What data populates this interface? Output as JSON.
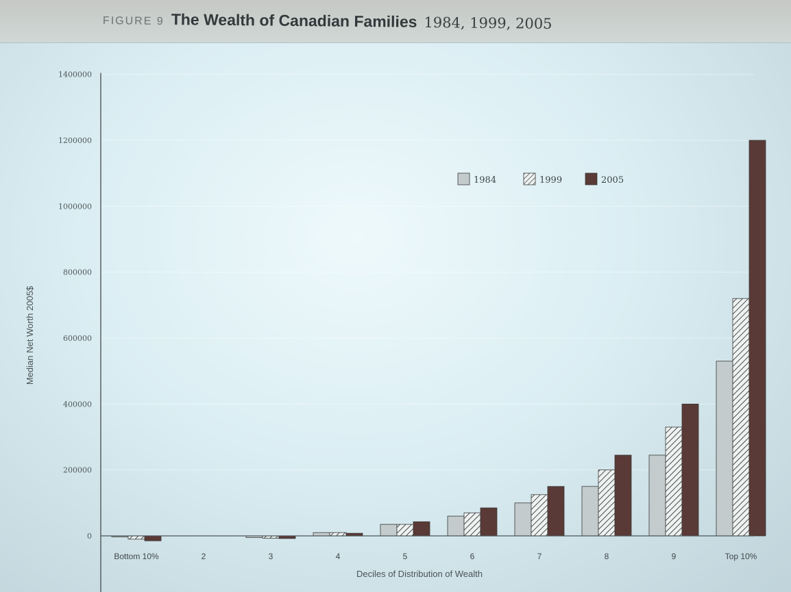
{
  "figure": {
    "label": "FIGURE 9",
    "title": "The Wealth of Canadian Families",
    "years": "1984, 1999, 2005"
  },
  "colors": {
    "background": "#dbeef3",
    "series_1984": "#c3cbcc",
    "series_1999_hatch": "#4a4a4a",
    "series_2005": "#5a3a36"
  },
  "chart_data": {
    "type": "bar",
    "title": "The Wealth of Canadian Families 1984, 1999, 2005",
    "xlabel": "Deciles of Distribution of Wealth",
    "ylabel": "Median Net Worth 2005$",
    "categories": [
      "Bottom 10%",
      "2",
      "3",
      "4",
      "5",
      "6",
      "7",
      "8",
      "9",
      "Top 10%"
    ],
    "series": [
      {
        "name": "1984",
        "values": [
          -3000,
          0,
          -5000,
          10000,
          35000,
          60000,
          100000,
          150000,
          245000,
          530000
        ],
        "fill": "solid-gray"
      },
      {
        "name": "1999",
        "values": [
          -10000,
          0,
          -7000,
          10000,
          35000,
          70000,
          125000,
          200000,
          330000,
          720000
        ],
        "fill": "hatched"
      },
      {
        "name": "2005",
        "values": [
          -15000,
          0,
          -8000,
          8000,
          43000,
          85000,
          150000,
          245000,
          400000,
          1200000
        ],
        "fill": "dark-brown"
      }
    ],
    "yticks": [
      0,
      200000,
      400000,
      600000,
      800000,
      1000000,
      1200000,
      1400000
    ],
    "ytick_labels": [
      "0",
      "200000",
      "400000",
      "600000",
      "800000",
      "1000000",
      "1200000",
      "1400000"
    ],
    "ylim": [
      -200000,
      1400000
    ],
    "grid": true,
    "legend_position": "top-right"
  }
}
